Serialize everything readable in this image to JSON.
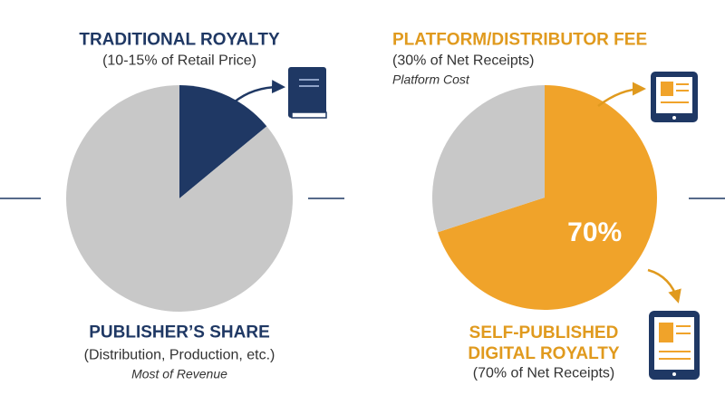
{
  "chart_data": [
    {
      "type": "pie",
      "categories": [
        "TRADITIONAL ROYALTY",
        "PUBLISHER’S SHARE"
      ],
      "descriptions": [
        "(10-15% of Retail Price)",
        "(Distribution, Production, etc.)"
      ],
      "notes": [
        null,
        "Most of Revenue"
      ],
      "values": [
        14,
        86
      ],
      "colors": [
        "#1f3864",
        "#c8c8c8"
      ]
    },
    {
      "type": "pie",
      "categories": [
        "SELF-PUBLISHED\nDIGITAL ROYALTY",
        "PLATFORM/DISTRIBUTOR FEE"
      ],
      "descriptions": [
        "(70% of Net Receipts)",
        "(30% of Net Receipts)"
      ],
      "notes": [
        null,
        "Platform Cost"
      ],
      "values": [
        70,
        30
      ],
      "value_labels": [
        "70%",
        null
      ],
      "colors": [
        "#f0a32a",
        "#c8c8c8"
      ]
    }
  ]
}
